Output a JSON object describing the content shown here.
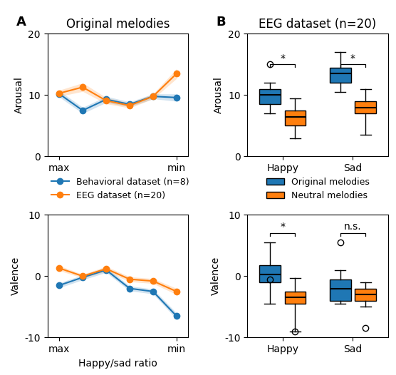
{
  "chart_data": [
    {
      "type": "line",
      "panel_label": "A",
      "title": "Original melodies",
      "categories": [
        "max",
        null,
        null,
        null,
        null,
        "min"
      ],
      "y_label": "Arousal",
      "ylim": [
        0,
        20
      ],
      "yticks": [
        0,
        10,
        20
      ],
      "marker": "o",
      "legend": "upper left",
      "series": [
        {
          "name": "Behavioral dataset (n=8)",
          "values": [
            10.2,
            7.5,
            9.3,
            8.5,
            9.8,
            9.6
          ],
          "sem": [
            0.5,
            0.5,
            0.5,
            0.4,
            0.4,
            0.6
          ]
        },
        {
          "name": "EEG dataset (n=20)",
          "values": [
            10.3,
            11.3,
            9.1,
            8.3,
            9.8,
            13.5
          ],
          "sem": [
            0.5,
            0.7,
            0.5,
            0.4,
            0.4,
            0.8
          ]
        }
      ]
    },
    {
      "type": "line",
      "categories": [
        "max",
        null,
        null,
        null,
        null,
        "min"
      ],
      "x_label": "Happy/sad ratio",
      "y_label": "Valence",
      "ylim": [
        -10,
        10
      ],
      "yticks": [
        -10,
        0,
        10
      ],
      "marker": "o",
      "series": [
        {
          "name": "Behavioral dataset (n=8)",
          "values": [
            -1.5,
            -0.2,
            1.0,
            -2.0,
            -2.5,
            -6.5
          ],
          "sem": [
            0.4,
            0.4,
            0.4,
            0.4,
            0.4,
            0.5
          ]
        },
        {
          "name": "EEG dataset (n=20)",
          "values": [
            1.3,
            0.0,
            1.2,
            -0.5,
            -0.8,
            -2.5
          ],
          "sem": [
            0.4,
            0.3,
            0.4,
            0.4,
            0.4,
            0.5
          ]
        }
      ]
    },
    {
      "type": "box",
      "panel_label": "B",
      "title": "EEG dataset (n=20)",
      "categories": [
        "Happy",
        "Sad"
      ],
      "y_label": "Arousal",
      "ylim": [
        0,
        20
      ],
      "yticks": [
        0,
        10,
        20
      ],
      "legend": "upper center",
      "series": [
        {
          "name": "Original melodies",
          "boxes": [
            {
              "med": 10.0,
              "q1": 8.5,
              "q3": 11.0,
              "whislo": 7.0,
              "whishi": 12.0,
              "fliers": [
                15.0
              ]
            },
            {
              "med": 13.5,
              "q1": 12.0,
              "q3": 14.5,
              "whislo": 10.5,
              "whishi": 17.0,
              "fliers": []
            }
          ]
        },
        {
          "name": "Neutral melodies",
          "boxes": [
            {
              "med": 6.5,
              "q1": 5.0,
              "q3": 7.5,
              "whislo": 3.0,
              "whishi": 9.5,
              "fliers": []
            },
            {
              "med": 8.0,
              "q1": 7.0,
              "q3": 9.0,
              "whislo": 3.5,
              "whishi": 11.0,
              "fliers": []
            }
          ]
        }
      ],
      "annotations": [
        {
          "text": "*",
          "category": "Happy",
          "y": 15.0
        },
        {
          "text": "*",
          "category": "Sad",
          "y": 15.0
        }
      ]
    },
    {
      "type": "box",
      "categories": [
        "Happy",
        "Sad"
      ],
      "y_label": "Valence",
      "ylim": [
        -10,
        10
      ],
      "yticks": [
        -10,
        0,
        10
      ],
      "series": [
        {
          "name": "Original melodies",
          "boxes": [
            {
              "med": 0.3,
              "q1": -1.0,
              "q3": 1.8,
              "whislo": -4.5,
              "whishi": 5.5,
              "fliers": [
                -0.5
              ]
            },
            {
              "med": -2.0,
              "q1": -4.0,
              "q3": -0.5,
              "whislo": -4.5,
              "whishi": 1.0,
              "fliers": [
                5.5
              ]
            }
          ]
        },
        {
          "name": "Neutral melodies",
          "boxes": [
            {
              "med": -3.5,
              "q1": -4.5,
              "q3": -2.5,
              "whislo": -9.0,
              "whishi": -0.3,
              "fliers": [
                -9.0
              ]
            },
            {
              "med": -3.0,
              "q1": -4.0,
              "q3": -2.0,
              "whislo": -5.0,
              "whishi": -1.0,
              "fliers": [
                -8.5
              ]
            }
          ]
        }
      ],
      "annotations": [
        {
          "text": "*",
          "category": "Happy",
          "y": 7.0
        },
        {
          "text": "n.s.",
          "category": "Sad",
          "y": 7.0
        }
      ]
    }
  ]
}
